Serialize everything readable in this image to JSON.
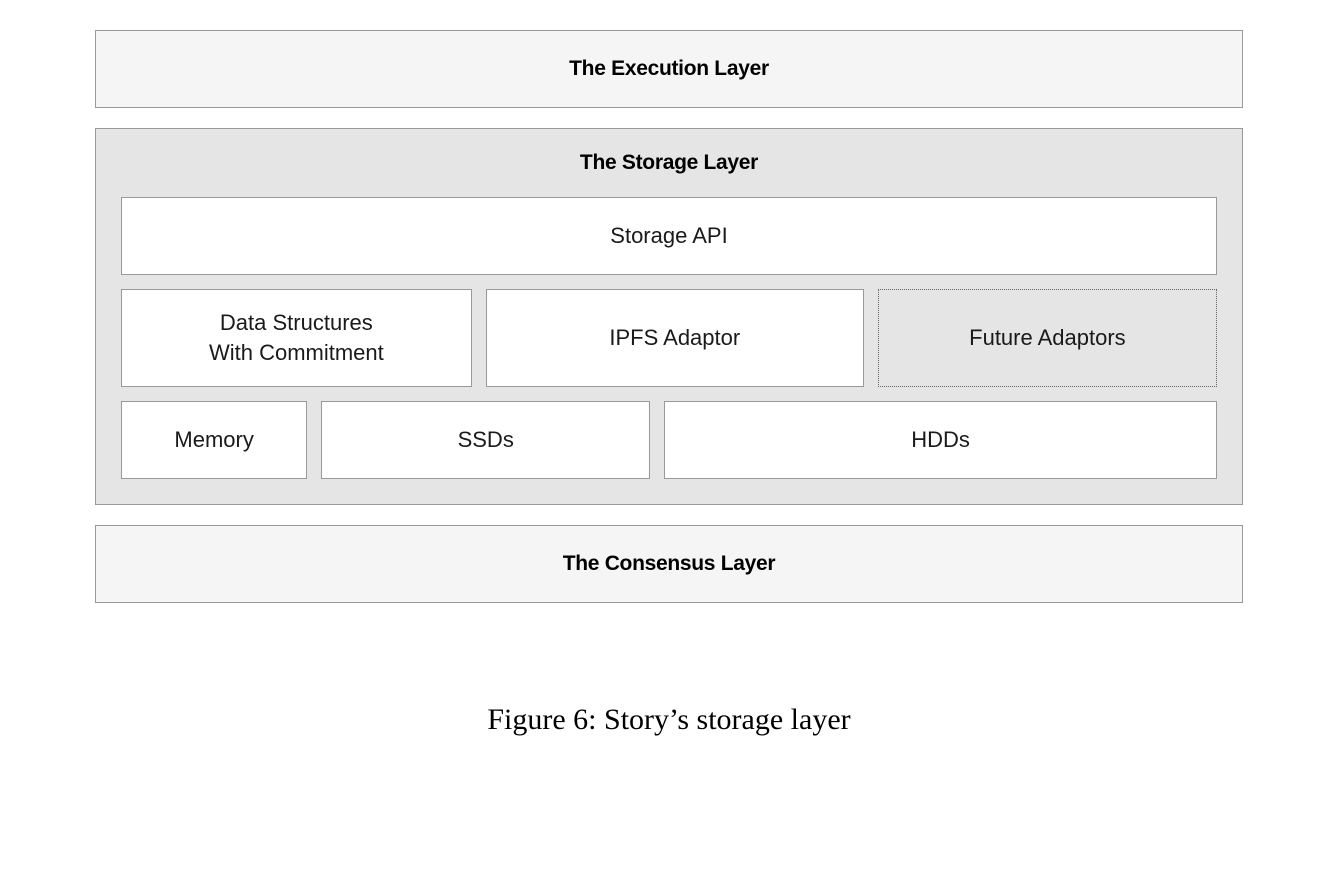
{
  "diagram": {
    "type": "layered-architecture",
    "background_color": "#ffffff",
    "layer_border_color": "#999999",
    "outer_layer_bg": "#f5f5f5",
    "storage_layer_bg": "#e5e5e5",
    "inner_box_bg": "#ffffff",
    "dotted_border_color": "#666666",
    "title_fontsize": 21,
    "title_fontweight": 800,
    "label_fontsize": 22,
    "label_fontweight": 400,
    "text_color": "#000000",
    "label_color": "#1a1a1a",
    "layers": {
      "execution": {
        "title": "The Execution Layer"
      },
      "storage": {
        "title": "The Storage Layer",
        "api": {
          "label": "Storage API"
        },
        "adaptors": [
          {
            "label": "Data Structures\nWith Commitment",
            "style": "solid",
            "width_pct": 32
          },
          {
            "label": "IPFS Adaptor",
            "style": "solid",
            "width_pct": 34.5
          },
          {
            "label": "Future Adaptors",
            "style": "dotted",
            "width_pct": 33.5
          }
        ],
        "hardware": [
          {
            "label": "Memory",
            "width_pct": 17
          },
          {
            "label": "SSDs",
            "width_pct": 30
          },
          {
            "label": "HDDs",
            "width_pct": 53
          }
        ]
      },
      "consensus": {
        "title": "The Consensus Layer"
      }
    }
  },
  "caption": "Figure 6: Story’s storage layer",
  "caption_fontsize": 30,
  "caption_font": "serif"
}
